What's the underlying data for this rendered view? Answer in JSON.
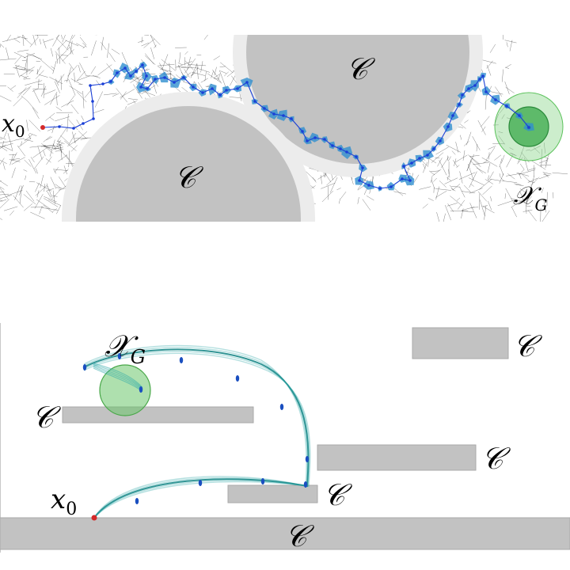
{
  "top_panel": {
    "start_label": "x",
    "start_subscript": "0",
    "goal_label": "𝒳",
    "goal_subscript": "G",
    "obstacle_label": "𝒞",
    "colors": {
      "obstacle": "#c2c2c2",
      "obstacle_margin": "#ececec",
      "tree": "#1a1a1a",
      "path": "#1a3fd6",
      "uncertainty": "#2f8fd0",
      "goal": "#5cc25c",
      "start": "#d42a2a"
    }
  },
  "bottom_panel": {
    "start_label": "x",
    "start_subscript": "0",
    "goal_label": "𝒳",
    "goal_subscript": "G",
    "obstacle_label": "𝒞",
    "colors": {
      "obstacle": "#c2c2c2",
      "trajectory": "#2aa7a7",
      "trajectory_dark": "#1b8a8a",
      "marker": "#1a4fc0",
      "goal": "#6cc76c",
      "start": "#d42a2a"
    }
  }
}
